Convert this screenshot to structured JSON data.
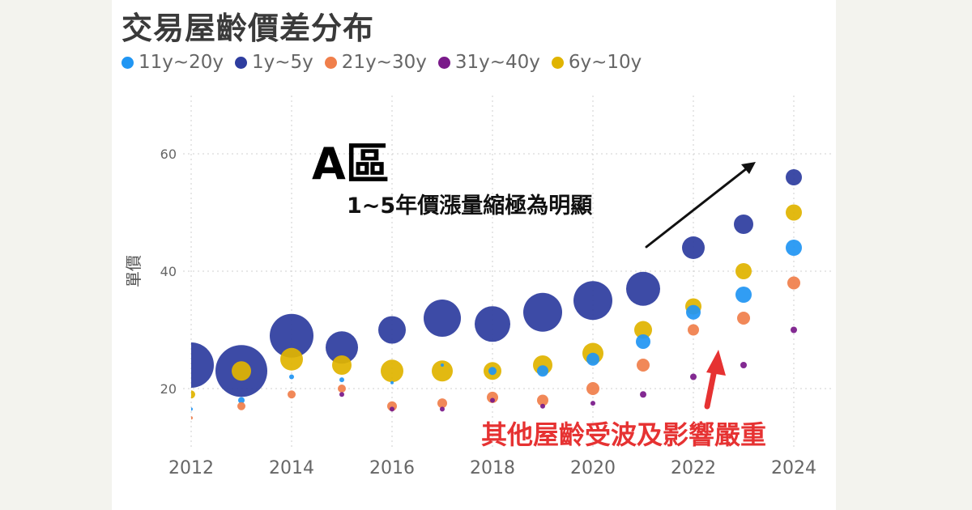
{
  "title": "交易屋齡價差分布",
  "annotations": {
    "area": "A區",
    "note_top": "1~5年價漲量縮極為明顯",
    "note_bottom": "其他屋齡受波及影響嚴重"
  },
  "colors": {
    "arrow_black": "#111111",
    "arrow_red": "#e63232"
  },
  "chart_data": {
    "type": "scatter",
    "title": "交易屋齡價差分布",
    "xlabel": "",
    "ylabel": "單價",
    "x_ticks": [
      "2012",
      "2014",
      "2016",
      "2018",
      "2020",
      "2022",
      "2024"
    ],
    "y_ticks": [
      "20",
      "40",
      "60"
    ],
    "xlim": [
      2012,
      2024
    ],
    "ylim": [
      10,
      68
    ],
    "grid": true,
    "legend_position": "top-left",
    "series": [
      {
        "name": "11y~20y",
        "color": "#2196f3",
        "points": [
          {
            "x": 2012,
            "y": 16.5,
            "size": 2
          },
          {
            "x": 2013,
            "y": 18,
            "size": 4
          },
          {
            "x": 2014,
            "y": 22,
            "size": 3
          },
          {
            "x": 2015,
            "y": 21.5,
            "size": 3
          },
          {
            "x": 2016,
            "y": 21,
            "size": 2
          },
          {
            "x": 2017,
            "y": 24,
            "size": 2
          },
          {
            "x": 2018,
            "y": 23,
            "size": 5
          },
          {
            "x": 2019,
            "y": 23,
            "size": 7
          },
          {
            "x": 2020,
            "y": 25,
            "size": 8
          },
          {
            "x": 2021,
            "y": 28,
            "size": 9
          },
          {
            "x": 2022,
            "y": 33,
            "size": 9
          },
          {
            "x": 2023,
            "y": 36,
            "size": 10
          },
          {
            "x": 2024,
            "y": 44,
            "size": 10
          }
        ]
      },
      {
        "name": "1y~5y",
        "color": "#2e3d9f",
        "points": [
          {
            "x": 2012,
            "y": 24,
            "size": 28
          },
          {
            "x": 2013,
            "y": 23,
            "size": 32
          },
          {
            "x": 2014,
            "y": 29,
            "size": 27
          },
          {
            "x": 2015,
            "y": 27,
            "size": 20
          },
          {
            "x": 2016,
            "y": 30,
            "size": 17
          },
          {
            "x": 2017,
            "y": 32,
            "size": 23
          },
          {
            "x": 2018,
            "y": 31,
            "size": 22
          },
          {
            "x": 2019,
            "y": 33,
            "size": 24
          },
          {
            "x": 2020,
            "y": 35,
            "size": 24
          },
          {
            "x": 2021,
            "y": 37,
            "size": 21
          },
          {
            "x": 2022,
            "y": 44,
            "size": 14
          },
          {
            "x": 2023,
            "y": 48,
            "size": 12
          },
          {
            "x": 2024,
            "y": 56,
            "size": 10
          }
        ]
      },
      {
        "name": "21y~30y",
        "color": "#f07f4b",
        "points": [
          {
            "x": 2012,
            "y": 15,
            "size": 2
          },
          {
            "x": 2013,
            "y": 17,
            "size": 5
          },
          {
            "x": 2014,
            "y": 19,
            "size": 5
          },
          {
            "x": 2015,
            "y": 20,
            "size": 5
          },
          {
            "x": 2016,
            "y": 17,
            "size": 6
          },
          {
            "x": 2017,
            "y": 17.5,
            "size": 6
          },
          {
            "x": 2018,
            "y": 18.5,
            "size": 7
          },
          {
            "x": 2019,
            "y": 18,
            "size": 7
          },
          {
            "x": 2020,
            "y": 20,
            "size": 8
          },
          {
            "x": 2021,
            "y": 24,
            "size": 8
          },
          {
            "x": 2022,
            "y": 30,
            "size": 7
          },
          {
            "x": 2023,
            "y": 32,
            "size": 8
          },
          {
            "x": 2024,
            "y": 38,
            "size": 8
          }
        ]
      },
      {
        "name": "31y~40y",
        "color": "#7a1a8a",
        "points": [
          {
            "x": 2015,
            "y": 19,
            "size": 3
          },
          {
            "x": 2016,
            "y": 16.5,
            "size": 3
          },
          {
            "x": 2017,
            "y": 16.5,
            "size": 3
          },
          {
            "x": 2018,
            "y": 18,
            "size": 3
          },
          {
            "x": 2019,
            "y": 17,
            "size": 3
          },
          {
            "x": 2020,
            "y": 17.5,
            "size": 3
          },
          {
            "x": 2021,
            "y": 19,
            "size": 4
          },
          {
            "x": 2022,
            "y": 22,
            "size": 4
          },
          {
            "x": 2023,
            "y": 24,
            "size": 4
          },
          {
            "x": 2024,
            "y": 30,
            "size": 4
          }
        ]
      },
      {
        "name": "6y~10y",
        "color": "#e0b400",
        "points": [
          {
            "x": 2012,
            "y": 19,
            "size": 5
          },
          {
            "x": 2013,
            "y": 23,
            "size": 12
          },
          {
            "x": 2014,
            "y": 25,
            "size": 14
          },
          {
            "x": 2015,
            "y": 24,
            "size": 12
          },
          {
            "x": 2016,
            "y": 23,
            "size": 14
          },
          {
            "x": 2017,
            "y": 23,
            "size": 13
          },
          {
            "x": 2018,
            "y": 23,
            "size": 11
          },
          {
            "x": 2019,
            "y": 24,
            "size": 12
          },
          {
            "x": 2020,
            "y": 26,
            "size": 13
          },
          {
            "x": 2021,
            "y": 30,
            "size": 11
          },
          {
            "x": 2022,
            "y": 34,
            "size": 10
          },
          {
            "x": 2023,
            "y": 40,
            "size": 10
          },
          {
            "x": 2024,
            "y": 50,
            "size": 10
          }
        ]
      }
    ]
  }
}
